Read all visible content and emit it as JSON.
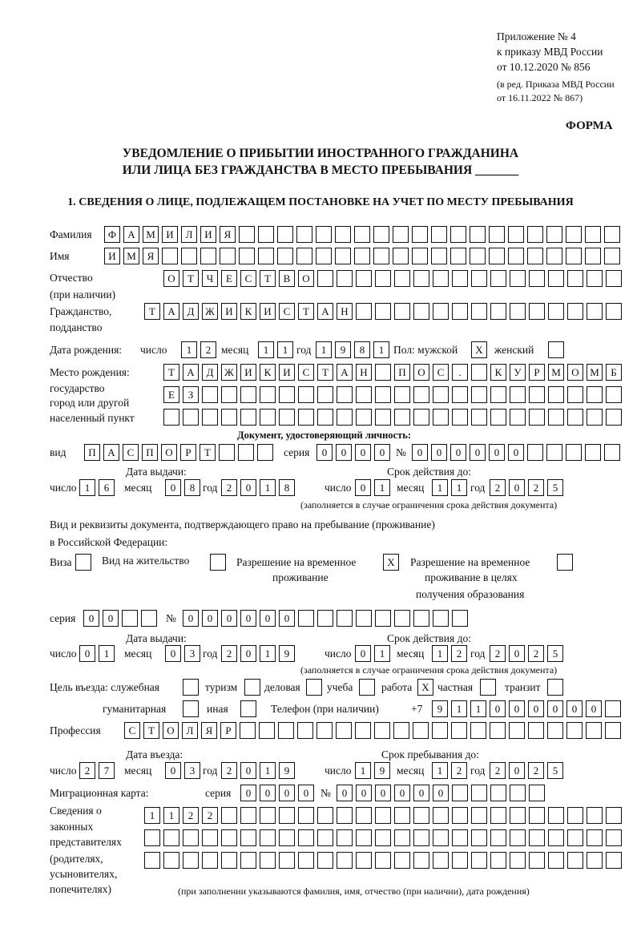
{
  "header": {
    "appendix": "Приложение № 4",
    "order": "к приказу МВД России",
    "order_date": "от 10.12.2020 № 856",
    "revision1": "(в ред. Приказа МВД России",
    "revision2": "от 16.11.2022 № 867)",
    "form": "ФОРМА",
    "title1": "УВЕДОМЛЕНИЕ О ПРИБЫТИИ ИНОСТРАННОГО ГРАЖДАНИНА",
    "title2": "ИЛИ ЛИЦА БЕЗ ГРАЖДАНСТВА В МЕСТО ПРЕБЫВАНИЯ _______",
    "section1": "1. СВЕДЕНИЯ О ЛИЦЕ, ПОДЛЕЖАЩЕМ ПОСТАНОВКЕ НА УЧЕТ ПО МЕСТУ ПРЕБЫВАНИЯ"
  },
  "labels": {
    "surname": "Фамилия",
    "name": "Имя",
    "patronymic": "Отчество",
    "patronymic_note": "(при наличии)",
    "citizenship": "Гражданство,",
    "citizenship2": "подданство",
    "birth_date": "Дата рождения:",
    "day": "число",
    "month": "месяц",
    "year": "год",
    "sex": "Пол: мужской",
    "female": "женский",
    "birthplace1": "Место рождения:",
    "birthplace2": "государство",
    "birthplace3": "город или другой",
    "birthplace4": "населенный пункт",
    "id_doc": "Документ, удостоверяющий личность:",
    "kind": "вид",
    "series": "серия",
    "number": "№",
    "issue_date": "Дата выдачи:",
    "valid_until": "Срок действия до:",
    "valid_note": "(заполняется в случае ограничения срока действия документа)",
    "stay_doc1": "Вид и реквизиты документа, подтверждающего право на пребывание (проживание)",
    "stay_doc2": "в Российской Федерации:",
    "visa": "Виза",
    "residence": "Вид на жительство",
    "trp1": "Разрешение на временное",
    "trp2": "проживание",
    "trp_edu1": "Разрешение на временное",
    "trp_edu2": "проживание в целях",
    "trp_edu3": "получения образования",
    "purpose": "Цель въезда: служебная",
    "tourism": "туризм",
    "business": "деловая",
    "study": "учеба",
    "work": "работа",
    "private": "частная",
    "transit": "транзит",
    "humanitarian": "гуманитарная",
    "other": "иная",
    "phone": "Телефон (при наличии)",
    "phone_prefix": "+7",
    "profession": "Профессия",
    "entry_date": "Дата въезда:",
    "stay_until": "Срок пребывания до:",
    "migration_card": "Миграционная карта:",
    "reps1": "Сведения о",
    "reps2": "законных",
    "reps3": "представителях",
    "reps4": "(родителях,",
    "reps5": "усыновителях,",
    "reps6": "попечителях)",
    "reps_note": "(при заполнении указываются фамилия, имя, отчество (при наличии), дата рождения)"
  },
  "person": {
    "surname": "ФАМИЛИЯ",
    "name": "ИМЯ",
    "patronymic": "ОТЧЕСТВО",
    "citizenship": "ТАДЖИКИСТАН",
    "birth_day": "12",
    "birth_month": "11",
    "birth_year": "1981",
    "male": "X",
    "female": "",
    "birthplace1": "ТАДЖИКИСТАН ПОС. КУРМОМБ",
    "birthplace2": "ЕЗ",
    "birthplace3": ""
  },
  "id_document": {
    "kind": "ПАСПОРТ",
    "series": "0000",
    "number": "000000",
    "issue_day": "16",
    "issue_month": "08",
    "issue_year": "2018",
    "valid_day": "01",
    "valid_month": "11",
    "valid_year": "2025"
  },
  "stay_document": {
    "visa": "",
    "residence": "",
    "trp": "X",
    "trp_edu": "",
    "series": "00",
    "number": "000000",
    "issue_day": "01",
    "issue_month": "03",
    "issue_year": "2019",
    "valid_day": "01",
    "valid_month": "12",
    "valid_year": "2025"
  },
  "purpose": {
    "official": "",
    "tourism": "",
    "business": "",
    "study": "",
    "work": "X",
    "private": "",
    "transit": "",
    "humanitarian": "",
    "other": ""
  },
  "phone": "911000000",
  "profession": "СТОЛЯР",
  "entry": {
    "day": "27",
    "month": "03",
    "year": "2019",
    "until_day": "19",
    "until_month": "12",
    "until_year": "2025"
  },
  "migration_card": {
    "series": "0000",
    "number": "000000"
  },
  "representatives": {
    "line1": "1122",
    "line2": "",
    "line3": ""
  }
}
